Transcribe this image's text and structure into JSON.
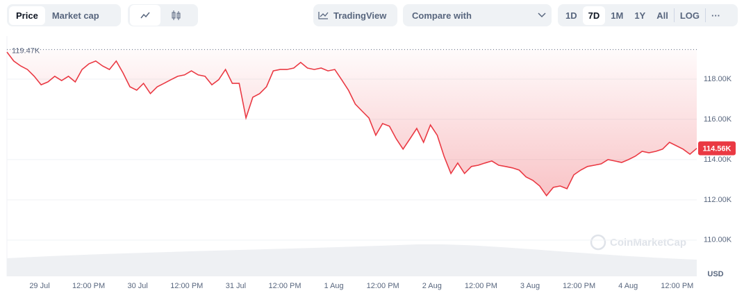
{
  "toolbar": {
    "tabs": [
      "Price",
      "Market cap"
    ],
    "tradingview": "TradingView",
    "compare": "Compare with",
    "ranges": [
      "1D",
      "7D",
      "1M",
      "1Y",
      "All"
    ],
    "log": "LOG",
    "more": "···"
  },
  "watermark": "CoinMarketCap",
  "chart_data": {
    "type": "line",
    "currency": "USD",
    "x_tick_labels": [
      "29 Jul",
      "12:00 PM",
      "30 Jul",
      "12:00 PM",
      "31 Jul",
      "12:00 PM",
      "1 Aug",
      "12:00 PM",
      "2 Aug",
      "12:00 PM",
      "3 Aug",
      "12:00 PM",
      "4 Aug",
      "12:00 PM"
    ],
    "series": [
      {
        "name": "Price",
        "color": "#ea3943",
        "values": [
          119345,
          118900,
          118655,
          118480,
          118140,
          117720,
          117860,
          118140,
          117930,
          118140,
          117860,
          118480,
          118760,
          118900,
          118655,
          118480,
          118900,
          118310,
          117620,
          117450,
          117790,
          117280,
          117620,
          117790,
          117970,
          118140,
          118210,
          118410,
          118210,
          118140,
          117720,
          117970,
          118480,
          117790,
          117790,
          116070,
          117100,
          117280,
          117620,
          118410,
          118480,
          118480,
          118550,
          118830,
          118550,
          118480,
          118550,
          118410,
          118480,
          117970,
          117450,
          116760,
          116410,
          116070,
          115210,
          115790,
          115660,
          115030,
          114520,
          115030,
          115550,
          114860,
          115720,
          115210,
          114170,
          113310,
          113830,
          113310,
          113660,
          113720,
          113830,
          113930,
          113720,
          113660,
          113590,
          113480,
          113140,
          112970,
          112690,
          112210,
          112620,
          112690,
          112550,
          113240,
          113480,
          113660,
          113720,
          113790,
          114000,
          113930,
          113860,
          114000,
          114170,
          114410,
          114340,
          114410,
          114520,
          114860,
          114690,
          114520,
          114270,
          114560
        ]
      }
    ],
    "ylim": [
      108200,
      120000
    ],
    "yticks": [
      {
        "value": 110000,
        "label": "110.00K"
      },
      {
        "value": 112000,
        "label": "112.00K"
      },
      {
        "value": 114000,
        "label": "114.00K"
      },
      {
        "value": 116000,
        "label": "116.00K"
      },
      {
        "value": 118000,
        "label": "118.00K"
      }
    ],
    "grid": true,
    "high": {
      "value": 119470,
      "label": "119.47K"
    },
    "last": {
      "value": 114560,
      "label": "114.56K"
    }
  }
}
